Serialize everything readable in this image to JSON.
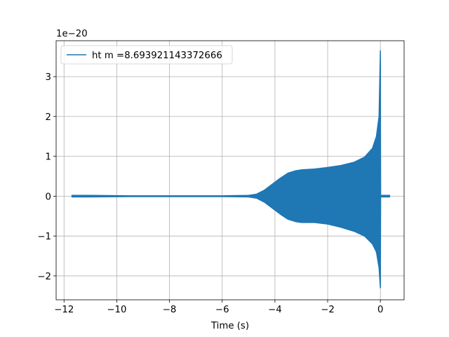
{
  "chart_data": {
    "type": "line",
    "title": "",
    "xlabel": "Time (s)",
    "ylabel": "",
    "y_offset_text": "1e−20",
    "xlim": [
      -12.3,
      0.9
    ],
    "ylim": [
      -2.6,
      3.9
    ],
    "xticks": [
      -12,
      -10,
      -8,
      -6,
      -4,
      -2,
      0
    ],
    "xtick_labels": [
      "−12",
      "−10",
      "−8",
      "−6",
      "−4",
      "−2",
      "0"
    ],
    "yticks": [
      -2,
      -1,
      0,
      1,
      2,
      3
    ],
    "ytick_labels": [
      "−2",
      "−1",
      "0",
      "1",
      "2",
      "3"
    ],
    "grid": true,
    "legend_position": "top-left",
    "series": [
      {
        "name": "ht m =8.693921143372666",
        "color": "#1f77b4",
        "x_range": [
          -11.7,
          0.35
        ],
        "upper_envelope": [
          [
            -11.7,
            0.02
          ],
          [
            -11.0,
            0.02
          ],
          [
            -9.5,
            0.01
          ],
          [
            -8.0,
            0.01
          ],
          [
            -6.0,
            0.01
          ],
          [
            -5.0,
            0.02
          ],
          [
            -4.7,
            0.05
          ],
          [
            -4.4,
            0.15
          ],
          [
            -4.1,
            0.3
          ],
          [
            -3.8,
            0.45
          ],
          [
            -3.5,
            0.58
          ],
          [
            -3.2,
            0.64
          ],
          [
            -3.0,
            0.66
          ],
          [
            -2.5,
            0.68
          ],
          [
            -2.0,
            0.72
          ],
          [
            -1.5,
            0.77
          ],
          [
            -1.0,
            0.85
          ],
          [
            -0.6,
            0.98
          ],
          [
            -0.3,
            1.2
          ],
          [
            -0.15,
            1.5
          ],
          [
            -0.05,
            2.0
          ],
          [
            0.0,
            3.65
          ],
          [
            0.01,
            0.0
          ],
          [
            0.05,
            0.02
          ],
          [
            0.35,
            0.02
          ]
        ],
        "lower_envelope": [
          [
            -11.7,
            -0.02
          ],
          [
            -11.0,
            -0.02
          ],
          [
            -9.5,
            -0.01
          ],
          [
            -8.0,
            -0.01
          ],
          [
            -6.0,
            -0.01
          ],
          [
            -5.0,
            -0.02
          ],
          [
            -4.7,
            -0.05
          ],
          [
            -4.4,
            -0.15
          ],
          [
            -4.1,
            -0.3
          ],
          [
            -3.8,
            -0.45
          ],
          [
            -3.5,
            -0.58
          ],
          [
            -3.2,
            -0.64
          ],
          [
            -3.0,
            -0.66
          ],
          [
            -2.5,
            -0.66
          ],
          [
            -2.0,
            -0.7
          ],
          [
            -1.5,
            -0.78
          ],
          [
            -1.0,
            -0.88
          ],
          [
            -0.6,
            -1.0
          ],
          [
            -0.3,
            -1.2
          ],
          [
            -0.15,
            -1.4
          ],
          [
            -0.05,
            -1.8
          ],
          [
            0.0,
            -2.3
          ],
          [
            0.01,
            0.0
          ],
          [
            0.05,
            -0.02
          ],
          [
            0.35,
            -0.02
          ]
        ]
      }
    ]
  }
}
